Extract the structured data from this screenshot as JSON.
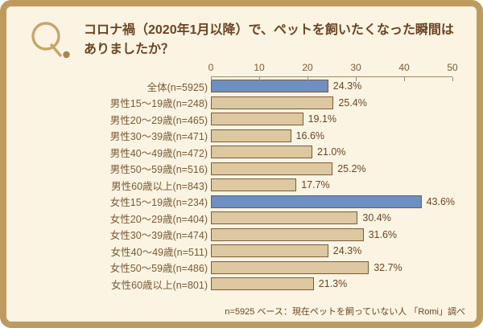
{
  "page": {
    "q_mark": "Q.",
    "title_line1": "コロナ禍（2020年1月以降）で、ペットを飼いたくなった瞬間は",
    "title_line2": "ありましたか？",
    "footer": "n=5925 ベース：現在ペットを飼っていない人 「Romi」調べ"
  },
  "colors": {
    "frame_border": "#bf9a5e",
    "background": "#fbf4e3",
    "title_text": "#6b4423",
    "label_text": "#7a5a35",
    "axis_line": "#a18a62",
    "bar_default": "#dcc8a1",
    "bar_highlight": "#6e8fc2",
    "bar_border": "#7a5c38",
    "q_mark_stroke": "#c7a56b",
    "q_mark_dot": "#a8854e"
  },
  "chart_data": {
    "type": "bar",
    "orientation": "horizontal",
    "title": "コロナ禍（2020年1月以降）で、ペットを飼いたくなった瞬間はありましたか？",
    "categories": [
      "全体(n=5925)",
      "男性15～19歳(n=248)",
      "男性20～29歳(n=465)",
      "男性30～39歳(n=471)",
      "男性40～49歳(n=472)",
      "男性50～59歳(n=516)",
      "男性60歳以上(n=843)",
      "女性15～19歳(n=234)",
      "女性20～29歳(n=404)",
      "女性30～39歳(n=474)",
      "女性40～49歳(n=511)",
      "女性50～59歳(n=486)",
      "女性60歳以上(n=801)"
    ],
    "values": [
      24.3,
      25.4,
      19.1,
      16.6,
      21.0,
      25.2,
      17.7,
      43.6,
      30.4,
      31.6,
      24.3,
      32.7,
      21.3
    ],
    "value_labels": [
      "24.3%",
      "25.4%",
      "19.1%",
      "16.6%",
      "21.0%",
      "25.2%",
      "17.7%",
      "43.6%",
      "30.4%",
      "31.6%",
      "24.3%",
      "32.7%",
      "21.3%"
    ],
    "highlight_indices": [
      0,
      7
    ],
    "xlim": [
      0,
      50
    ],
    "x_ticks": [
      0,
      10,
      20,
      30,
      40,
      50
    ],
    "unit": "%",
    "grid": false,
    "legend": "none",
    "note": "n=5925 ベース：現在ペットを飼っていない人 「Romi」調べ"
  }
}
